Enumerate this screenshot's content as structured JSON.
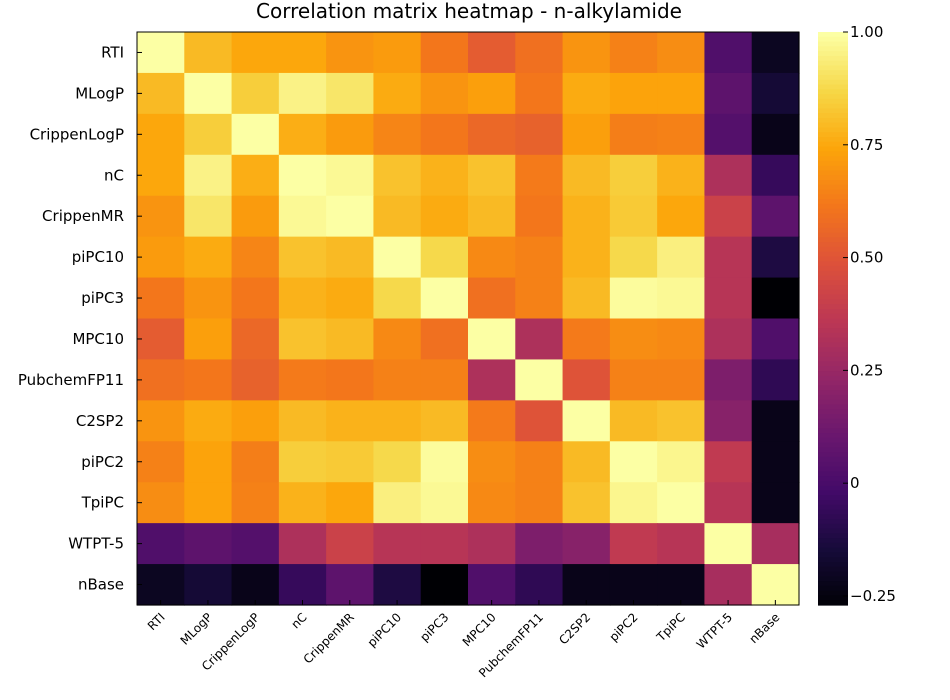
{
  "chart_data": {
    "type": "heatmap",
    "title": "Correlation matrix heatmap - n-alkylamide",
    "labels": [
      "RTI",
      "MLogP",
      "CrippenLogP",
      "nC",
      "CrippenMR",
      "piPC10",
      "piPC3",
      "MPC10",
      "PubchemFP11",
      "C2SP2",
      "piPC2",
      "TpiPC",
      "WTPT-5",
      "nBase"
    ],
    "matrix": [
      [
        1.0,
        0.8,
        0.75,
        0.75,
        0.7,
        0.72,
        0.62,
        0.53,
        0.6,
        0.7,
        0.65,
        0.68,
        0.03,
        -0.2
      ],
      [
        0.8,
        1.0,
        0.85,
        0.96,
        0.92,
        0.76,
        0.7,
        0.73,
        0.62,
        0.76,
        0.74,
        0.74,
        0.07,
        -0.15
      ],
      [
        0.75,
        0.85,
        1.0,
        0.77,
        0.72,
        0.66,
        0.62,
        0.57,
        0.55,
        0.73,
        0.64,
        0.65,
        0.04,
        -0.22
      ],
      [
        0.75,
        0.96,
        0.77,
        1.0,
        0.98,
        0.82,
        0.78,
        0.82,
        0.63,
        0.8,
        0.85,
        0.78,
        0.32,
        -0.05
      ],
      [
        0.7,
        0.92,
        0.72,
        0.98,
        1.0,
        0.8,
        0.76,
        0.8,
        0.62,
        0.78,
        0.84,
        0.75,
        0.42,
        0.07
      ],
      [
        0.72,
        0.76,
        0.66,
        0.82,
        0.8,
        1.0,
        0.88,
        0.67,
        0.65,
        0.78,
        0.88,
        0.95,
        0.35,
        -0.12
      ],
      [
        0.62,
        0.7,
        0.62,
        0.78,
        0.76,
        0.88,
        1.0,
        0.6,
        0.65,
        0.8,
        0.99,
        0.98,
        0.35,
        -0.28
      ],
      [
        0.53,
        0.73,
        0.57,
        0.82,
        0.8,
        0.67,
        0.6,
        1.0,
        0.32,
        0.63,
        0.68,
        0.67,
        0.32,
        0.03
      ],
      [
        0.6,
        0.62,
        0.55,
        0.63,
        0.62,
        0.65,
        0.65,
        0.32,
        1.0,
        0.5,
        0.65,
        0.65,
        0.17,
        -0.07
      ],
      [
        0.7,
        0.76,
        0.73,
        0.8,
        0.78,
        0.78,
        0.8,
        0.63,
        0.5,
        1.0,
        0.8,
        0.82,
        0.2,
        -0.22
      ],
      [
        0.65,
        0.74,
        0.64,
        0.85,
        0.84,
        0.88,
        0.99,
        0.68,
        0.65,
        0.8,
        1.0,
        0.97,
        0.38,
        -0.22
      ],
      [
        0.68,
        0.74,
        0.65,
        0.78,
        0.75,
        0.95,
        0.98,
        0.67,
        0.65,
        0.82,
        0.97,
        1.0,
        0.35,
        -0.22
      ],
      [
        0.03,
        0.07,
        0.04,
        0.32,
        0.42,
        0.35,
        0.35,
        0.32,
        0.17,
        0.2,
        0.38,
        0.35,
        1.0,
        0.3
      ],
      [
        -0.2,
        -0.15,
        -0.22,
        -0.05,
        0.07,
        -0.12,
        -0.28,
        0.03,
        -0.07,
        -0.22,
        -0.22,
        -0.22,
        0.3,
        1.0
      ]
    ],
    "colorbar": {
      "min": -0.27,
      "max": 1.0,
      "ticks": [
        1.0,
        0.75,
        0.5,
        0.25,
        0,
        -0.25
      ],
      "tick_labels": [
        "1.00",
        "0.75",
        "0.50",
        "0.25",
        "0",
        "−0.25"
      ],
      "colormap": "inferno"
    },
    "grid": false
  }
}
